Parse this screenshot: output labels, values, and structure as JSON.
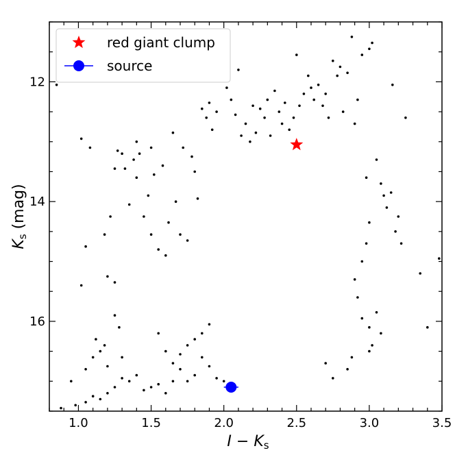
{
  "chart_data": {
    "type": "scatter",
    "title": "",
    "xlabel_main": "I − K",
    "xlabel_sub": "s",
    "ylabel_main": "K",
    "ylabel_sub": "s",
    "ylabel_unit": " (mag)",
    "xlim": [
      0.8,
      3.5
    ],
    "ylim": [
      17.5,
      11.0
    ],
    "y_inverted": true,
    "grid": false,
    "legend_position": "top-left",
    "x_ticks": [
      "1.0",
      "1.5",
      "2.0",
      "2.5",
      "3.0",
      "3.5"
    ],
    "x_tick_values": [
      1.0,
      1.5,
      2.0,
      2.5,
      3.0,
      3.5
    ],
    "y_ticks": [
      "12",
      "14",
      "16"
    ],
    "y_tick_values": [
      12,
      14,
      16
    ],
    "series": [
      {
        "name": "red giant clump",
        "marker": "star",
        "color": "#ff0000",
        "points": [
          {
            "x": 2.5,
            "y": 13.05
          }
        ]
      },
      {
        "name": "source",
        "marker": "circle-errorbar",
        "color": "#0000ff",
        "points": [
          {
            "x": 2.05,
            "y": 17.1,
            "xerr": 0.05
          }
        ]
      }
    ],
    "field_stars": {
      "color": "#000000",
      "points": [
        [
          0.85,
          12.05
        ],
        [
          0.95,
          17.0
        ],
        [
          1.02,
          12.95
        ],
        [
          1.08,
          13.1
        ],
        [
          1.05,
          14.75
        ],
        [
          1.02,
          15.4
        ],
        [
          1.05,
          16.8
        ],
        [
          1.1,
          16.6
        ],
        [
          1.12,
          16.3
        ],
        [
          1.15,
          16.5
        ],
        [
          1.2,
          16.75
        ],
        [
          1.18,
          16.4
        ],
        [
          1.25,
          15.9
        ],
        [
          1.28,
          16.1
        ],
        [
          1.3,
          16.6
        ],
        [
          1.22,
          14.25
        ],
        [
          1.18,
          14.55
        ],
        [
          1.2,
          15.25
        ],
        [
          1.25,
          15.35
        ],
        [
          1.25,
          13.45
        ],
        [
          1.27,
          13.15
        ],
        [
          1.3,
          13.2
        ],
        [
          1.32,
          13.45
        ],
        [
          1.35,
          14.05
        ],
        [
          1.38,
          13.3
        ],
        [
          1.4,
          13.0
        ],
        [
          1.4,
          13.6
        ],
        [
          1.42,
          13.2
        ],
        [
          1.45,
          14.25
        ],
        [
          1.48,
          13.9
        ],
        [
          1.5,
          13.1
        ],
        [
          1.5,
          14.55
        ],
        [
          1.52,
          13.55
        ],
        [
          1.55,
          14.8
        ],
        [
          1.58,
          13.4
        ],
        [
          1.6,
          14.9
        ],
        [
          1.62,
          14.35
        ],
        [
          1.65,
          12.85
        ],
        [
          1.67,
          14.0
        ],
        [
          1.7,
          14.55
        ],
        [
          1.72,
          13.1
        ],
        [
          1.75,
          14.65
        ],
        [
          1.78,
          13.25
        ],
        [
          1.8,
          13.5
        ],
        [
          1.82,
          13.95
        ],
        [
          1.85,
          12.45
        ],
        [
          1.88,
          12.6
        ],
        [
          1.9,
          12.35
        ],
        [
          1.92,
          12.8
        ],
        [
          1.95,
          12.5
        ],
        [
          2.0,
          11.75
        ],
        [
          2.02,
          12.1
        ],
        [
          2.05,
          12.3
        ],
        [
          2.08,
          12.55
        ],
        [
          2.1,
          11.8
        ],
        [
          2.12,
          12.9
        ],
        [
          2.15,
          12.7
        ],
        [
          2.18,
          13.0
        ],
        [
          2.2,
          12.4
        ],
        [
          2.22,
          12.85
        ],
        [
          2.25,
          12.45
        ],
        [
          2.28,
          12.6
        ],
        [
          2.3,
          12.3
        ],
        [
          2.32,
          12.9
        ],
        [
          2.35,
          12.15
        ],
        [
          2.38,
          12.5
        ],
        [
          2.4,
          12.7
        ],
        [
          2.42,
          12.35
        ],
        [
          2.45,
          12.8
        ],
        [
          2.48,
          12.6
        ],
        [
          2.5,
          11.55
        ],
        [
          2.52,
          12.4
        ],
        [
          2.55,
          12.2
        ],
        [
          2.58,
          11.9
        ],
        [
          2.6,
          12.1
        ],
        [
          2.62,
          12.3
        ],
        [
          2.65,
          12.05
        ],
        [
          2.68,
          12.4
        ],
        [
          2.7,
          12.2
        ],
        [
          2.72,
          12.6
        ],
        [
          2.75,
          11.65
        ],
        [
          2.78,
          11.9
        ],
        [
          2.8,
          11.75
        ],
        [
          2.82,
          12.5
        ],
        [
          2.85,
          11.85
        ],
        [
          2.88,
          11.25
        ],
        [
          2.9,
          12.7
        ],
        [
          2.92,
          12.3
        ],
        [
          2.95,
          11.55
        ],
        [
          2.98,
          13.6
        ],
        [
          3.0,
          11.45
        ],
        [
          3.02,
          11.35
        ],
        [
          3.05,
          13.3
        ],
        [
          3.08,
          13.7
        ],
        [
          3.1,
          13.9
        ],
        [
          3.12,
          14.1
        ],
        [
          3.15,
          13.85
        ],
        [
          3.16,
          12.05
        ],
        [
          3.18,
          14.5
        ],
        [
          3.2,
          14.25
        ],
        [
          3.22,
          14.7
        ],
        [
          3.25,
          12.6
        ],
        [
          3.35,
          15.2
        ],
        [
          3.4,
          16.1
        ],
        [
          3.48,
          14.95
        ],
        [
          3.0,
          14.35
        ],
        [
          2.98,
          14.7
        ],
        [
          2.95,
          15.0
        ],
        [
          2.9,
          15.3
        ],
        [
          2.92,
          15.6
        ],
        [
          2.95,
          15.95
        ],
        [
          3.0,
          16.1
        ],
        [
          3.05,
          15.85
        ],
        [
          3.08,
          16.2
        ],
        [
          3.02,
          16.4
        ],
        [
          3.0,
          16.5
        ],
        [
          2.88,
          16.6
        ],
        [
          2.85,
          16.8
        ],
        [
          2.75,
          16.95
        ],
        [
          2.7,
          16.7
        ],
        [
          1.55,
          16.2
        ],
        [
          1.6,
          16.5
        ],
        [
          1.65,
          16.7
        ],
        [
          1.7,
          16.8
        ],
        [
          1.75,
          17.0
        ],
        [
          1.8,
          16.9
        ],
        [
          1.85,
          16.6
        ],
        [
          1.9,
          16.75
        ],
        [
          1.95,
          16.95
        ],
        [
          2.0,
          17.0
        ],
        [
          1.4,
          16.9
        ],
        [
          1.35,
          17.0
        ],
        [
          1.3,
          16.95
        ],
        [
          1.25,
          17.1
        ],
        [
          1.2,
          17.2
        ],
        [
          1.15,
          17.3
        ],
        [
          1.1,
          17.25
        ],
        [
          1.05,
          17.35
        ],
        [
          0.98,
          17.4
        ],
        [
          0.88,
          17.45
        ],
        [
          1.45,
          17.15
        ],
        [
          1.5,
          17.1
        ],
        [
          1.55,
          17.05
        ],
        [
          1.6,
          17.2
        ],
        [
          1.65,
          17.0
        ],
        [
          1.7,
          16.55
        ],
        [
          1.75,
          16.4
        ],
        [
          1.8,
          16.3
        ],
        [
          1.85,
          16.2
        ],
        [
          1.9,
          16.05
        ]
      ]
    }
  }
}
